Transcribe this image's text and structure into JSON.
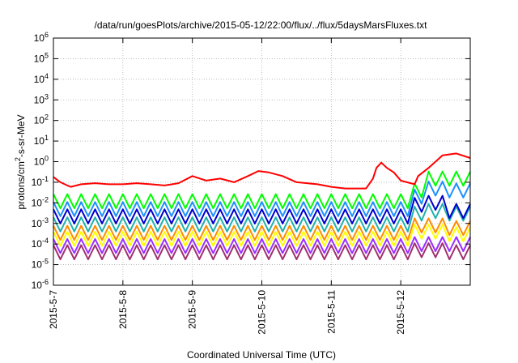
{
  "chart_data": {
    "type": "line",
    "title": "/data/run/goesPlots/archive/2015-05-12/22:00/flux/../flux/5daysMarsFluxes.txt",
    "xlabel": "Coordinated Universal Time (UTC)",
    "ylabel_prefix": "protons/cm",
    "ylabel_sup": "2",
    "ylabel_suffix": "-s-sr-MeV",
    "x_ticks": [
      "2015-5-7",
      "2015-5-8",
      "2015-5-9",
      "2015-5-10",
      "2015-5-11",
      "2015-5-12"
    ],
    "xlim": [
      0,
      6
    ],
    "ylim": [
      1e-06,
      1000000.0
    ],
    "yscale": "log",
    "y_tick_exponents": [
      -6,
      -5,
      -4,
      -3,
      -2,
      -1,
      0,
      1,
      2,
      3,
      4,
      5,
      6
    ],
    "grid": true,
    "legend": "none",
    "series": [
      {
        "color": "#ff0000",
        "x": [
          0.0,
          0.1,
          0.2,
          0.25,
          0.4,
          0.6,
          0.8,
          1.0,
          1.2,
          1.4,
          1.6,
          1.8,
          2.0,
          2.2,
          2.4,
          2.6,
          2.8,
          2.95,
          3.1,
          3.3,
          3.5,
          3.8,
          4.0,
          4.2,
          4.5,
          4.6,
          4.65,
          4.72,
          4.8,
          4.9,
          5.0,
          5.2,
          5.25,
          5.4,
          5.6,
          5.8,
          6.0
        ],
        "y": [
          0.18,
          0.1,
          0.07,
          0.06,
          0.08,
          0.09,
          0.08,
          0.08,
          0.09,
          0.08,
          0.07,
          0.09,
          0.2,
          0.12,
          0.15,
          0.1,
          0.2,
          0.35,
          0.3,
          0.2,
          0.1,
          0.08,
          0.06,
          0.05,
          0.05,
          0.15,
          0.5,
          0.9,
          0.5,
          0.3,
          0.12,
          0.08,
          0.2,
          0.5,
          2.0,
          2.5,
          1.5
        ]
      },
      {
        "color": "#00ff00",
        "base": 0.012,
        "tail": [
          0.04,
          0.15,
          0.15
        ]
      },
      {
        "color": "#1e90ff",
        "base": 0.005,
        "tail": [
          0.02,
          0.05,
          0.04
        ]
      },
      {
        "color": "#0000cd",
        "base": 0.0022,
        "tail": [
          0.008,
          0.01,
          0.004
        ]
      },
      {
        "color": "#20b2aa",
        "base": 0.0009,
        "tail": [
          0.003,
          0.004,
          0.003
        ]
      },
      {
        "color": "#ff8c00",
        "base": 0.00035,
        "tail": [
          0.0008,
          0.0008,
          0.0006
        ]
      },
      {
        "color": "#ffff00",
        "base": 0.00018,
        "tail": [
          0.0004,
          0.0004,
          0.0003
        ]
      },
      {
        "color": "#9b30ff",
        "base": 8e-05,
        "tail": [
          0.0001,
          0.0001,
          0.0001
        ]
      },
      {
        "color": "#a0306e",
        "base": 4e-05,
        "tail": [
          5e-05,
          5e-05,
          4e-05
        ]
      }
    ]
  }
}
